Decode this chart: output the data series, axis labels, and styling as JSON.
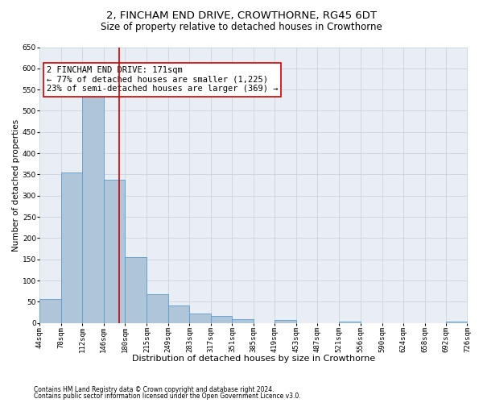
{
  "title": "2, FINCHAM END DRIVE, CROWTHORNE, RG45 6DT",
  "subtitle": "Size of property relative to detached houses in Crowthorne",
  "xlabel": "Distribution of detached houses by size in Crowthorne",
  "ylabel": "Number of detached properties",
  "footnote1": "Contains HM Land Registry data © Crown copyright and database right 2024.",
  "footnote2": "Contains public sector information licensed under the Open Government Licence v3.0.",
  "annotation_title": "2 FINCHAM END DRIVE: 171sqm",
  "annotation_line1": "← 77% of detached houses are smaller (1,225)",
  "annotation_line2": "23% of semi-detached houses are larger (369) →",
  "property_size": 171,
  "bar_left_edges": [
    44,
    78,
    112,
    146,
    180,
    215,
    249,
    283,
    317,
    351,
    385,
    419,
    453,
    487,
    521,
    556,
    590,
    624,
    658,
    692
  ],
  "bar_widths": [
    34,
    34,
    34,
    34,
    35,
    34,
    34,
    34,
    34,
    34,
    34,
    34,
    34,
    34,
    35,
    34,
    34,
    34,
    34,
    34
  ],
  "bar_heights": [
    57,
    354,
    539,
    337,
    155,
    68,
    41,
    22,
    17,
    10,
    0,
    8,
    0,
    0,
    4,
    0,
    0,
    0,
    0,
    4
  ],
  "bar_color": "#AEC6D8",
  "bar_edge_color": "#5B9BD5",
  "vline_x": 171,
  "vline_color": "#CC0000",
  "ylim": [
    0,
    650
  ],
  "yticks": [
    0,
    50,
    100,
    150,
    200,
    250,
    300,
    350,
    400,
    450,
    500,
    550,
    600,
    650
  ],
  "xtick_labels": [
    "44sqm",
    "78sqm",
    "112sqm",
    "146sqm",
    "180sqm",
    "215sqm",
    "249sqm",
    "283sqm",
    "317sqm",
    "351sqm",
    "385sqm",
    "419sqm",
    "453sqm",
    "487sqm",
    "521sqm",
    "556sqm",
    "590sqm",
    "624sqm",
    "658sqm",
    "692sqm",
    "726sqm"
  ],
  "grid_color": "#C8D4DC",
  "bg_color": "#E8EEF4",
  "annotation_box_color": "#CC0000",
  "title_fontsize": 9.5,
  "subtitle_fontsize": 8.5,
  "annotation_fontsize": 7.5,
  "tick_fontsize": 6.5,
  "xlabel_fontsize": 8,
  "ylabel_fontsize": 7.5,
  "footnote_fontsize": 5.5
}
